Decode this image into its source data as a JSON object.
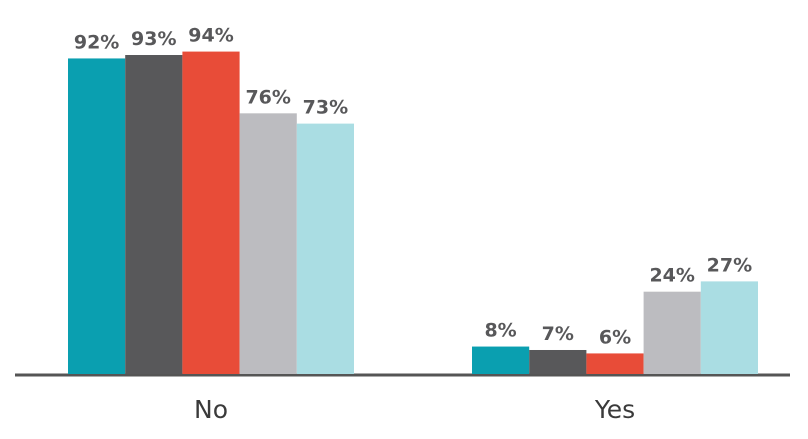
{
  "chart_data": {
    "type": "bar",
    "categories": [
      "No",
      "Yes"
    ],
    "series": [
      {
        "color": "#0a9fb0",
        "values": [
          92,
          8
        ],
        "value_labels": [
          "92%",
          "8%"
        ]
      },
      {
        "color": "#58585a",
        "values": [
          93,
          7
        ],
        "value_labels": [
          "93%",
          "7%"
        ]
      },
      {
        "color": "#e84c38",
        "values": [
          94,
          6
        ],
        "value_labels": [
          "94%",
          "6%"
        ]
      },
      {
        "color": "#bcbcc0",
        "values": [
          76,
          24
        ],
        "value_labels": [
          "76%",
          "24%"
        ]
      },
      {
        "color": "#aadde3",
        "values": [
          73,
          27
        ],
        "value_labels": [
          "73%",
          "27%"
        ]
      }
    ]
  }
}
